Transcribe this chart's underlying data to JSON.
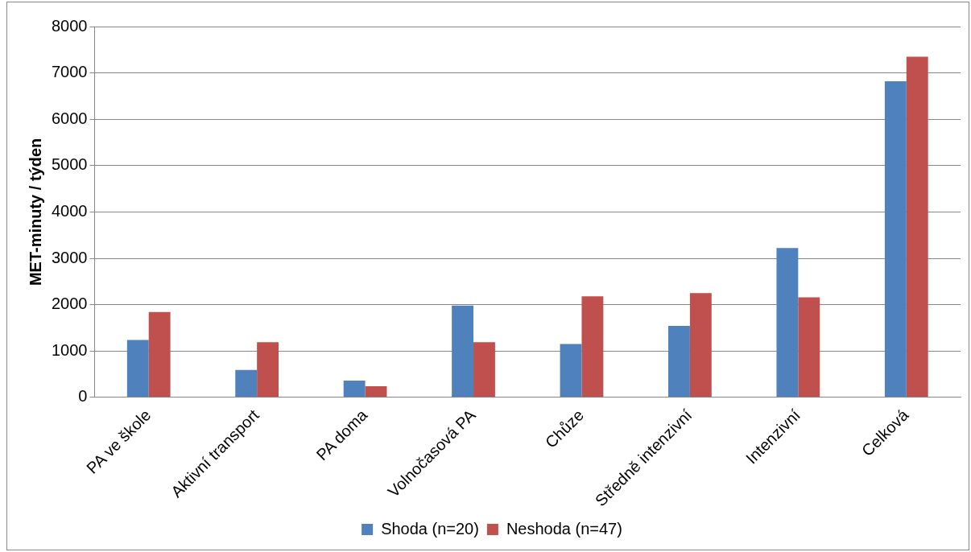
{
  "chart_data": {
    "type": "bar",
    "ylabel": "MET-minuty / týden",
    "categories": [
      "PA ve škole",
      "Aktivní transport",
      "PA doma",
      "Volnočasová PA",
      "Chůze",
      "Středně intenzivní",
      "Intenzivní",
      "Celková"
    ],
    "series": [
      {
        "name": "Shoda (n=20)",
        "color": "#4f81bd",
        "values": [
          1240,
          590,
          360,
          1980,
          1150,
          1540,
          3220,
          6820
        ]
      },
      {
        "name": "Neshoda (n=47)",
        "color": "#c0504d",
        "values": [
          1840,
          1190,
          240,
          1190,
          2180,
          2250,
          2160,
          7350
        ]
      }
    ],
    "ylim": [
      0,
      8000
    ],
    "yticks": [
      0,
      1000,
      2000,
      3000,
      4000,
      5000,
      6000,
      7000,
      8000
    ],
    "grid": "y",
    "legend": "bottom"
  }
}
